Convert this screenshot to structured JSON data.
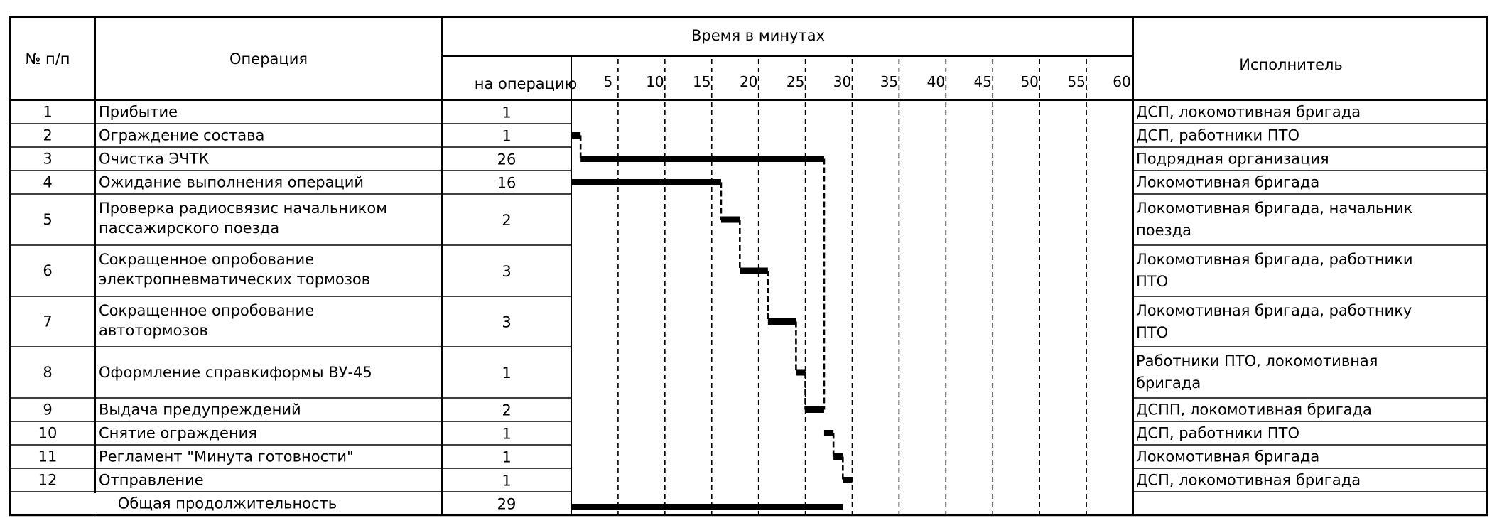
{
  "headers": {
    "num": "№ п/п",
    "operation": "Операция",
    "time": "Время в минутах",
    "duration": "на операцию",
    "executor": "Исполнитель"
  },
  "ticks": [
    "5",
    "10",
    "15",
    "20",
    "25",
    "30",
    "35",
    "40",
    "45",
    "50",
    "55",
    "60"
  ],
  "rows": [
    {
      "num": "1",
      "op": [
        "Прибытие"
      ],
      "dur": "1",
      "exec": [
        "ДСП, локомотивная бригада"
      ]
    },
    {
      "num": "2",
      "op": [
        "Ограждение состава"
      ],
      "dur": "1",
      "exec": [
        "ДСП, работники ПТО"
      ]
    },
    {
      "num": "3",
      "op": [
        "Очистка ЭЧТК"
      ],
      "dur": "26",
      "exec": [
        "Подрядная организация"
      ]
    },
    {
      "num": "4",
      "op": [
        "Ожидание выполнения операций"
      ],
      "dur": "16",
      "exec": [
        "Локомотивная бригада"
      ]
    },
    {
      "num": "5",
      "op": [
        "Проверка радиосвязис начальником",
        "пассажирского поезда"
      ],
      "dur": "2",
      "exec": [
        "Локомотивная бригада, начальник",
        "поезда"
      ]
    },
    {
      "num": "6",
      "op": [
        "Сокращенное опробование",
        "электропневматических тормозов"
      ],
      "dur": "3",
      "exec": [
        "Локомотивная бригада, работники",
        "ПТО"
      ]
    },
    {
      "num": "7",
      "op": [
        "Сокращенное опробование",
        "автотормозов"
      ],
      "dur": "3",
      "exec": [
        "Локомотивная бригада, работнику",
        "ПТО"
      ]
    },
    {
      "num": "8",
      "op": [
        "Оформление справкиформы ВУ-45"
      ],
      "dur": "1",
      "exec": [
        "Работники ПТО, локомотивная",
        "бригада"
      ]
    },
    {
      "num": "9",
      "op": [
        "Выдача предупреждений"
      ],
      "dur": "2",
      "exec": [
        "ДСПП, локомотивная бригада"
      ]
    },
    {
      "num": "10",
      "op": [
        "Снятие ограждения"
      ],
      "dur": "1",
      "exec": [
        "ДСП, работники ПТО"
      ]
    },
    {
      "num": "11",
      "op": [
        "Регламент \"Минута готовности\""
      ],
      "dur": "1",
      "exec": [
        "Локомотивная бригада"
      ]
    },
    {
      "num": "12",
      "op": [
        "Отправление"
      ],
      "dur": "1",
      "exec": [
        "ДСП, локомотивная бригада"
      ]
    }
  ],
  "total": {
    "label": "Общая продолжительность",
    "dur": "29"
  },
  "bars": [
    {
      "row": 1,
      "start": 0,
      "end": 1
    },
    {
      "row": 2,
      "start": 1,
      "end": 27
    },
    {
      "row": 3,
      "start": 0,
      "end": 16
    },
    {
      "row": 4,
      "start": 16,
      "end": 18
    },
    {
      "row": 5,
      "start": 18,
      "end": 21
    },
    {
      "row": 6,
      "start": 21,
      "end": 24
    },
    {
      "row": 7,
      "start": 24,
      "end": 25
    },
    {
      "row": 8,
      "start": 25,
      "end": 27
    },
    {
      "row": 9,
      "start": 27,
      "end": 28
    },
    {
      "row": 10,
      "start": 28,
      "end": 29
    },
    {
      "row": 11,
      "start": 29,
      "end": 30
    },
    {
      "row": "total",
      "start": 0,
      "end": 29
    }
  ],
  "connectors": [
    {
      "x": 1,
      "from": 1,
      "to": 2
    },
    {
      "x": 16,
      "from": 3,
      "to": 4
    },
    {
      "x": 18,
      "from": 4,
      "to": 5
    },
    {
      "x": 21,
      "from": 5,
      "to": 6
    },
    {
      "x": 24,
      "from": 6,
      "to": 7
    },
    {
      "x": 25,
      "from": 7,
      "to": 8
    },
    {
      "x": 27,
      "from": 2,
      "to": 8
    },
    {
      "x": 28,
      "from": 9,
      "to": 10
    },
    {
      "x": 29,
      "from": 10,
      "to": 11
    }
  ]
}
